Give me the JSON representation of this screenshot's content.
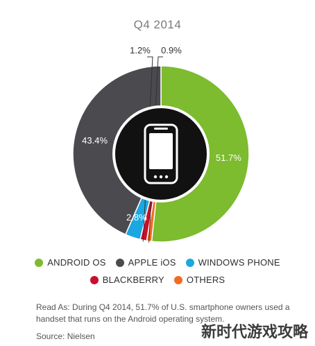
{
  "chart_data": {
    "type": "pie",
    "title": "Q4 2014",
    "categories": [
      "ANDROID OS",
      "APPLE iOS",
      "WINDOWS PHONE",
      "BLACKBERRY",
      "OTHERS"
    ],
    "values": [
      51.7,
      43.4,
      2.8,
      1.2,
      0.9
    ],
    "value_labels": [
      "51.7%",
      "43.4%",
      "2.8%",
      "1.2%",
      "0.9%"
    ],
    "colors": [
      "#7dbb2f",
      "#4a4a4f",
      "#1ba7e1",
      "#c8102e",
      "#f26b21"
    ],
    "style": "donut with phone icon in centre",
    "legend_placement": "bottom"
  },
  "note": "Read As: During Q4 2014, 51.7% of U.S. smartphone owners used a handset that runs on the Android operating system.",
  "source": "Source: Nielsen",
  "watermark": "新时代游戏攻略"
}
